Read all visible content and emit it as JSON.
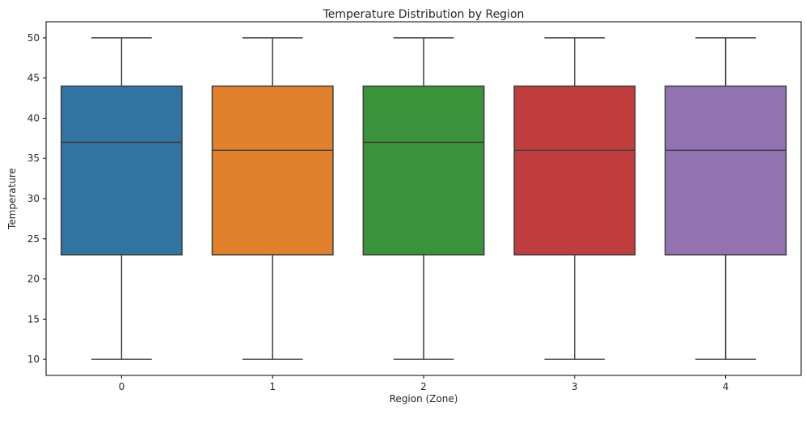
{
  "chart_data": {
    "type": "box",
    "title": "Temperature Distribution by Region",
    "xlabel": "Region (Zone)",
    "ylabel": "Temperature",
    "categories": [
      "0",
      "1",
      "2",
      "3",
      "4"
    ],
    "yticks": [
      "10",
      "15",
      "20",
      "25",
      "30",
      "35",
      "40",
      "45",
      "50"
    ],
    "ylim": [
      8,
      52
    ],
    "grid": false,
    "boxes": [
      {
        "category": "0",
        "min": 10,
        "q1": 23,
        "median": 37,
        "q3": 44,
        "max": 50,
        "color": "#3274a1"
      },
      {
        "category": "1",
        "min": 10,
        "q1": 23,
        "median": 36,
        "q3": 44,
        "max": 50,
        "color": "#e1812c"
      },
      {
        "category": "2",
        "min": 10,
        "q1": 23,
        "median": 37,
        "q3": 44,
        "max": 50,
        "color": "#3a923a"
      },
      {
        "category": "3",
        "min": 10,
        "q1": 23,
        "median": 36,
        "q3": 44,
        "max": 50,
        "color": "#c03d3e"
      },
      {
        "category": "4",
        "min": 10,
        "q1": 23,
        "median": 36,
        "q3": 44,
        "max": 50,
        "color": "#9372b2"
      }
    ],
    "line_color": "#3f3f3f"
  }
}
